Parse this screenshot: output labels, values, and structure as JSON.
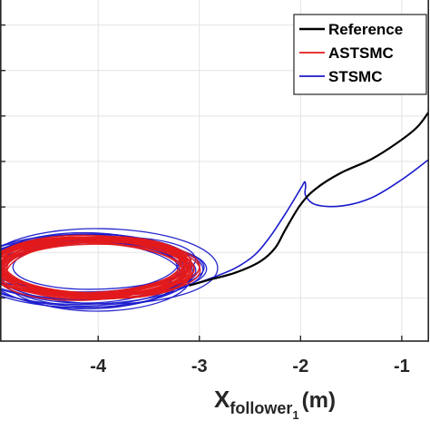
{
  "chart_data": {
    "type": "line",
    "title": "",
    "xlabel": {
      "main": "X",
      "sub": "follower",
      "subsub": "1",
      "unit": "(m)"
    },
    "ylabel": "",
    "xlim": [
      -4.97,
      -0.73
    ],
    "ylim": [
      -1.95,
      5.55
    ],
    "xticks": [
      -4,
      -3,
      -2,
      -1
    ],
    "xtick_labels": [
      "-4",
      "-3",
      "-2",
      "-1"
    ],
    "yticks": [
      -1,
      0,
      1,
      2,
      3,
      4,
      5
    ],
    "grid": true,
    "legend_placement": "top-right",
    "series": [
      {
        "name": "Reference",
        "color": "#000000",
        "style": "smooth",
        "x": [
          -3.1,
          -2.9,
          -2.65,
          -2.4,
          -2.25,
          -2.15,
          -2.0,
          -1.85,
          -1.6,
          -1.3,
          -1.05,
          -0.85,
          -0.73
        ],
        "y": [
          -0.73,
          -0.6,
          -0.45,
          -0.2,
          0.1,
          0.5,
          1.05,
          1.4,
          1.75,
          2.05,
          2.4,
          2.75,
          3.1
        ]
      },
      {
        "name": "ASTSMC",
        "color": "#e31a1c",
        "style": "loops",
        "loops": {
          "cx": -4.05,
          "cy": -0.33,
          "rx_base": 0.95,
          "ry_base": 0.62,
          "count": 24,
          "rx_spread": 0.12,
          "ry_spread": 0.1,
          "cx_spread": 0.12,
          "cy_spread": 0.14
        },
        "x": [
          -3.1,
          -2.9,
          -2.65,
          -2.4,
          -2.25,
          -2.15,
          -2.0,
          -1.85,
          -1.6,
          -1.3,
          -1.05,
          -0.85,
          -0.73
        ],
        "y": [
          -0.73,
          -0.6,
          -0.45,
          -0.2,
          0.1,
          0.5,
          1.05,
          1.4,
          1.75,
          2.05,
          2.4,
          2.75,
          3.1
        ]
      },
      {
        "name": "STSMC",
        "color": "#1a1acc",
        "style": "loops",
        "loops": {
          "cx": -4.05,
          "cy": -0.38,
          "rx_base": 1.0,
          "ry_base": 0.7,
          "count": 16,
          "rx_spread": 0.3,
          "ry_spread": 0.3,
          "cx_spread": 0.25,
          "cy_spread": 0.3
        },
        "x": [
          -3.1,
          -2.9,
          -2.65,
          -2.45,
          -2.3,
          -2.15,
          -2.0,
          -1.96,
          -1.95,
          -1.95,
          -1.85,
          -1.6,
          -1.3,
          -1.0,
          -0.73
        ],
        "y": [
          -0.73,
          -0.58,
          -0.35,
          -0.05,
          0.35,
          0.85,
          1.4,
          1.55,
          1.45,
          1.25,
          1.05,
          1.02,
          1.2,
          1.6,
          2.05
        ]
      }
    ]
  }
}
